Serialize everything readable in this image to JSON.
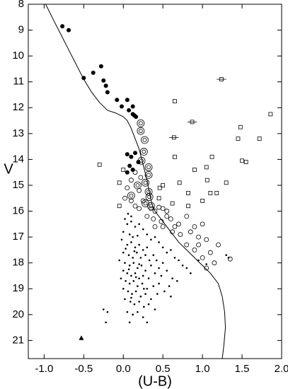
{
  "chart_data": {
    "type": "scatter",
    "xlabel": "(U-B)",
    "ylabel": "V",
    "xlim": [
      -1.2,
      2.0
    ],
    "ylim": [
      8,
      21.7
    ],
    "y_inverted": true,
    "xticks": [
      {
        "value": -1.0,
        "label": "-1.0"
      },
      {
        "value": -0.5,
        "label": "-0.5"
      },
      {
        "value": 0.0,
        "label": "0.0"
      },
      0.5,
      {
        "value": 1.0,
        "label": "1.0"
      },
      1.5,
      {
        "value": 2.0,
        "label": "2.0"
      }
    ],
    "yticks": [
      8,
      9,
      10,
      11,
      12,
      13,
      14,
      15,
      16,
      17,
      18,
      19,
      20,
      21
    ],
    "line": {
      "color": "#000",
      "x": [
        -0.98,
        -0.9,
        -0.8,
        -0.7,
        -0.6,
        -0.5,
        -0.4,
        -0.3,
        -0.2,
        -0.1,
        0.0,
        0.05,
        0.1,
        0.15,
        0.2,
        0.25,
        0.3,
        0.33,
        0.36,
        0.4,
        0.5,
        0.6,
        0.7,
        0.8,
        0.9,
        1.0,
        1.1,
        1.2,
        1.25,
        1.28,
        1.29,
        1.27,
        1.25
      ],
      "values": [
        8.0,
        8.5,
        9.1,
        9.7,
        10.3,
        10.9,
        11.4,
        11.8,
        12.1,
        12.2,
        12.35,
        12.5,
        12.8,
        13.2,
        13.6,
        14.2,
        14.8,
        15.3,
        15.7,
        16.0,
        16.4,
        16.8,
        17.2,
        17.5,
        17.8,
        18.1,
        18.4,
        18.8,
        19.3,
        19.9,
        20.5,
        21.2,
        21.7
      ]
    },
    "series": [
      {
        "marker": "dot",
        "color": "#000",
        "x": [
          0.02,
          0.05,
          0.1,
          0.15,
          0.2,
          0.25,
          0.0,
          0.08,
          0.12,
          0.18,
          0.3,
          0.35,
          0.4,
          0.45,
          -0.02,
          0.05,
          0.1,
          0.15,
          0.2,
          0.25,
          0.3,
          0.5,
          0.55,
          0.6,
          0.0,
          0.07,
          0.12,
          0.17,
          0.22,
          0.28,
          0.33,
          0.38,
          0.42,
          0.65,
          0.7,
          -0.05,
          0.02,
          0.08,
          0.13,
          0.18,
          0.23,
          0.28,
          0.35,
          0.45,
          0.5,
          0.75,
          0.8,
          0.0,
          0.05,
          0.1,
          0.15,
          0.2,
          0.25,
          0.32,
          0.4,
          0.48,
          0.55,
          0.62,
          0.85,
          -0.03,
          0.03,
          0.08,
          0.13,
          0.18,
          0.24,
          0.3,
          0.38,
          0.45,
          0.58,
          0.68,
          0.0,
          0.06,
          0.11,
          0.16,
          0.22,
          0.28,
          0.35,
          0.43,
          0.52,
          0.6,
          0.02,
          0.09,
          0.14,
          0.2,
          0.26,
          0.32,
          0.4,
          0.05,
          0.12,
          0.18,
          0.25,
          0.08,
          0.3,
          -0.25,
          -0.2,
          -0.22,
          0.1,
          0.06,
          0.14,
          0.07,
          0.2,
          0.03,
          0.16,
          0.26,
          0.1,
          1.3,
          1.33,
          1.05,
          0.95
        ],
        "values": [
          16.3,
          16.5,
          16.4,
          16.6,
          16.5,
          16.7,
          16.8,
          16.9,
          17.0,
          16.95,
          16.9,
          17.1,
          17.0,
          17.2,
          17.1,
          17.3,
          17.2,
          17.4,
          17.3,
          17.5,
          17.4,
          17.4,
          17.6,
          17.5,
          17.6,
          17.7,
          17.8,
          17.6,
          17.8,
          17.7,
          17.9,
          17.7,
          17.9,
          17.8,
          17.9,
          17.9,
          18.0,
          18.1,
          18.0,
          18.2,
          18.1,
          18.3,
          18.1,
          18.2,
          18.0,
          18.1,
          18.2,
          18.3,
          18.4,
          18.5,
          18.4,
          18.6,
          18.5,
          18.6,
          18.4,
          18.5,
          18.3,
          18.6,
          18.4,
          18.6,
          18.7,
          18.8,
          18.7,
          18.9,
          18.8,
          19.0,
          18.9,
          18.8,
          18.9,
          18.7,
          19.0,
          19.1,
          19.2,
          19.1,
          19.3,
          19.2,
          19.4,
          19.2,
          19.1,
          19.3,
          19.4,
          19.5,
          19.6,
          19.5,
          19.7,
          19.6,
          19.8,
          19.9,
          20.0,
          19.9,
          20.1,
          20.3,
          20.3,
          19.8,
          19.9,
          20.3,
          16.2,
          16.1,
          17.55,
          18.25,
          18.05,
          17.45,
          18.55,
          19.0,
          19.35,
          17.7,
          17.8,
          18.05,
          17.9
        ]
      },
      {
        "marker": "open-circle",
        "color": "#000",
        "x": [
          0.15,
          0.1,
          0.05,
          0.1,
          0.15,
          0.2,
          0.25,
          0.35,
          0.4,
          0.45,
          0.5,
          0.55,
          0.3,
          0.38,
          0.48,
          0.6,
          0.7,
          0.5,
          0.62,
          0.72,
          0.85,
          0.95,
          0.8,
          0.9,
          1.05,
          0.8,
          0.9,
          0.95,
          1.1,
          1.2,
          1.0,
          1.05,
          1.15,
          1.35,
          1.0,
          0.55,
          0.65,
          0.4,
          0.2,
          0.02,
          0.22
        ],
        "values": [
          14.5,
          14.8,
          15.1,
          15.6,
          15.8,
          15.9,
          15.6,
          15.9,
          16.0,
          15.85,
          15.9,
          16.0,
          16.2,
          16.3,
          16.4,
          16.3,
          16.5,
          16.6,
          16.8,
          16.9,
          16.8,
          17.0,
          16.2,
          16.6,
          17.1,
          17.3,
          17.5,
          17.3,
          17.6,
          17.3,
          17.8,
          18.2,
          18.0,
          17.85,
          16.5,
          16.2,
          16.6,
          16.6,
          15.2,
          15.5,
          14.7
        ]
      },
      {
        "marker": "double-circle",
        "color": "#000",
        "x": [
          0.22,
          0.22,
          0.27,
          0.26,
          0.23,
          0.32,
          0.32,
          0.28,
          0.32,
          0.28,
          0.33,
          0.35,
          0.18,
          0.1
        ],
        "values": [
          12.6,
          12.9,
          13.25,
          13.7,
          14.05,
          14.3,
          14.6,
          14.9,
          15.25,
          15.7,
          15.45,
          15.8,
          15.0,
          15.4
        ]
      },
      {
        "marker": "square",
        "color": "#000",
        "x": [
          0.65,
          1.48,
          1.86,
          1.72,
          1.45,
          0.65,
          1.12,
          1.5,
          1.55,
          1.05,
          0.9,
          1.06,
          0.5,
          0.46,
          0.71,
          1.3,
          1.1,
          1.18,
          0.82,
          0.45,
          0.82,
          1.0,
          0.62,
          -0.3,
          -0.05,
          -0.05,
          0.0
        ],
        "values": [
          11.75,
          12.75,
          12.25,
          13.2,
          13.2,
          13.9,
          13.9,
          14.05,
          14.1,
          14.3,
          14.4,
          14.8,
          15.0,
          15.1,
          14.9,
          14.9,
          15.3,
          15.3,
          15.3,
          15.5,
          15.8,
          15.6,
          15.7,
          14.2,
          15.8,
          14.9,
          14.4
        ]
      },
      {
        "marker": "square",
        "color": "#000",
        "x": [
          1.24,
          0.87,
          0.64
        ],
        "values": [
          10.9,
          12.55,
          13.15
        ],
        "xerr": [
          0.06,
          0.06,
          0.06
        ]
      },
      {
        "marker": "filled-circle",
        "color": "#000",
        "x": [
          -0.77,
          -0.69,
          -0.28,
          -0.5,
          -0.38,
          -0.22,
          -0.25,
          -0.2,
          -0.08,
          0.05,
          -0.02,
          0.07,
          0.12,
          0.12,
          0.14,
          0.16,
          0.1,
          0.15,
          0.05,
          0.08,
          0.19,
          0.05,
          0.12
        ],
        "values": [
          8.85,
          9.0,
          10.4,
          10.85,
          10.65,
          11.15,
          10.95,
          11.4,
          11.7,
          11.7,
          11.95,
          12.1,
          11.95,
          12.25,
          12.3,
          12.35,
          13.9,
          13.75,
          13.8,
          14.25,
          14.1,
          14.5,
          14.4
        ]
      },
      {
        "marker": "triangle",
        "color": "#000",
        "x": [
          -0.53
        ],
        "values": [
          20.9
        ]
      }
    ]
  }
}
